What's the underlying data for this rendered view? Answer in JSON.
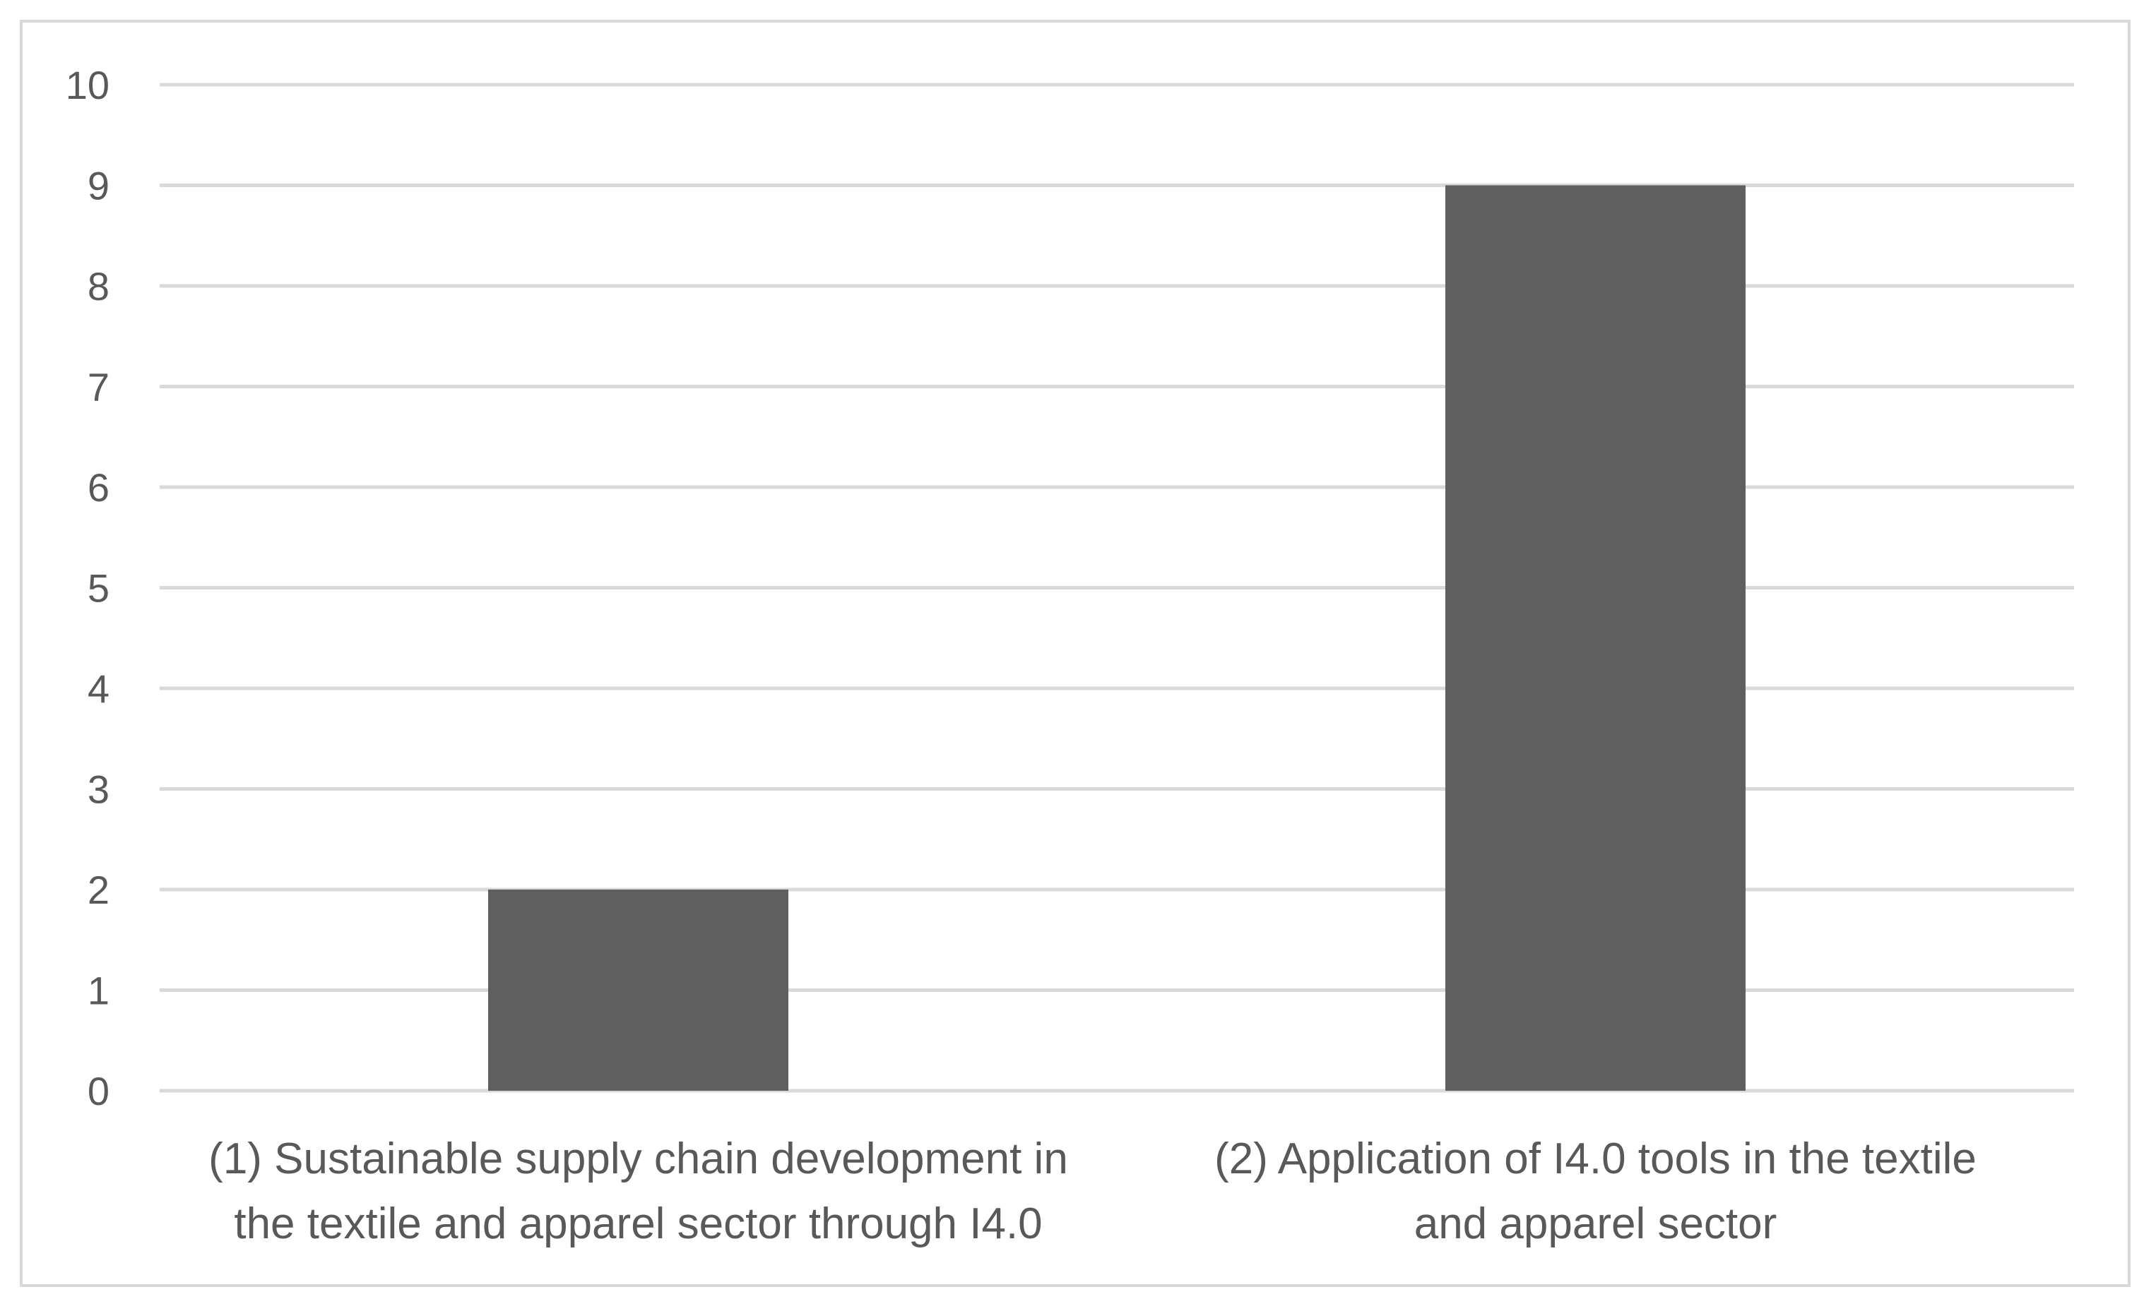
{
  "chart_data": {
    "type": "bar",
    "title": "",
    "xlabel": "",
    "ylabel": "",
    "categories": [
      [
        "(1) Sustainable supply chain development in",
        "the textile and apparel sector through I4.0"
      ],
      [
        "(2) Application of I4.0 tools in the textile",
        "and apparel sector"
      ]
    ],
    "values": [
      2,
      9
    ],
    "ylim": [
      0,
      10
    ],
    "yticks": [
      0,
      1,
      2,
      3,
      4,
      5,
      6,
      7,
      8,
      9,
      10
    ],
    "grid": true,
    "legend": "none",
    "colors": {
      "bar": "#5f5f5f",
      "gridline": "#d9d9d9",
      "text": "#595959",
      "frame": "#d9d9d9"
    }
  }
}
